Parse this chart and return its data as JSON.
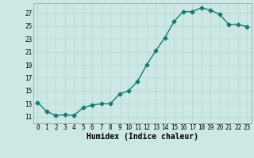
{
  "xlabel": "Humidex (Indice chaleur)",
  "ylabel": "",
  "x": [
    0,
    1,
    2,
    3,
    4,
    5,
    6,
    7,
    8,
    9,
    10,
    11,
    12,
    13,
    14,
    15,
    16,
    17,
    18,
    19,
    20,
    21,
    22,
    23
  ],
  "y": [
    13.2,
    11.8,
    11.2,
    11.3,
    11.2,
    12.4,
    12.8,
    13.0,
    13.0,
    14.5,
    15.0,
    16.5,
    19.0,
    21.2,
    23.2,
    25.7,
    27.2,
    27.2,
    27.8,
    27.4,
    26.8,
    25.2,
    25.2,
    24.9
  ],
  "line_color": "#1a7a6e",
  "bg_color": "#cce8e4",
  "grid_color": "#b8d8d4",
  "ylim_min": 10,
  "ylim_max": 28.5,
  "yticks": [
    11,
    13,
    15,
    17,
    19,
    21,
    23,
    25,
    27
  ],
  "xticks": [
    0,
    1,
    2,
    3,
    4,
    5,
    6,
    7,
    8,
    9,
    10,
    11,
    12,
    13,
    14,
    15,
    16,
    17,
    18,
    19,
    20,
    21,
    22,
    23
  ],
  "marker": "D",
  "markersize": 2.5,
  "linewidth": 1.0,
  "tick_fontsize": 5.5,
  "label_fontsize": 7
}
